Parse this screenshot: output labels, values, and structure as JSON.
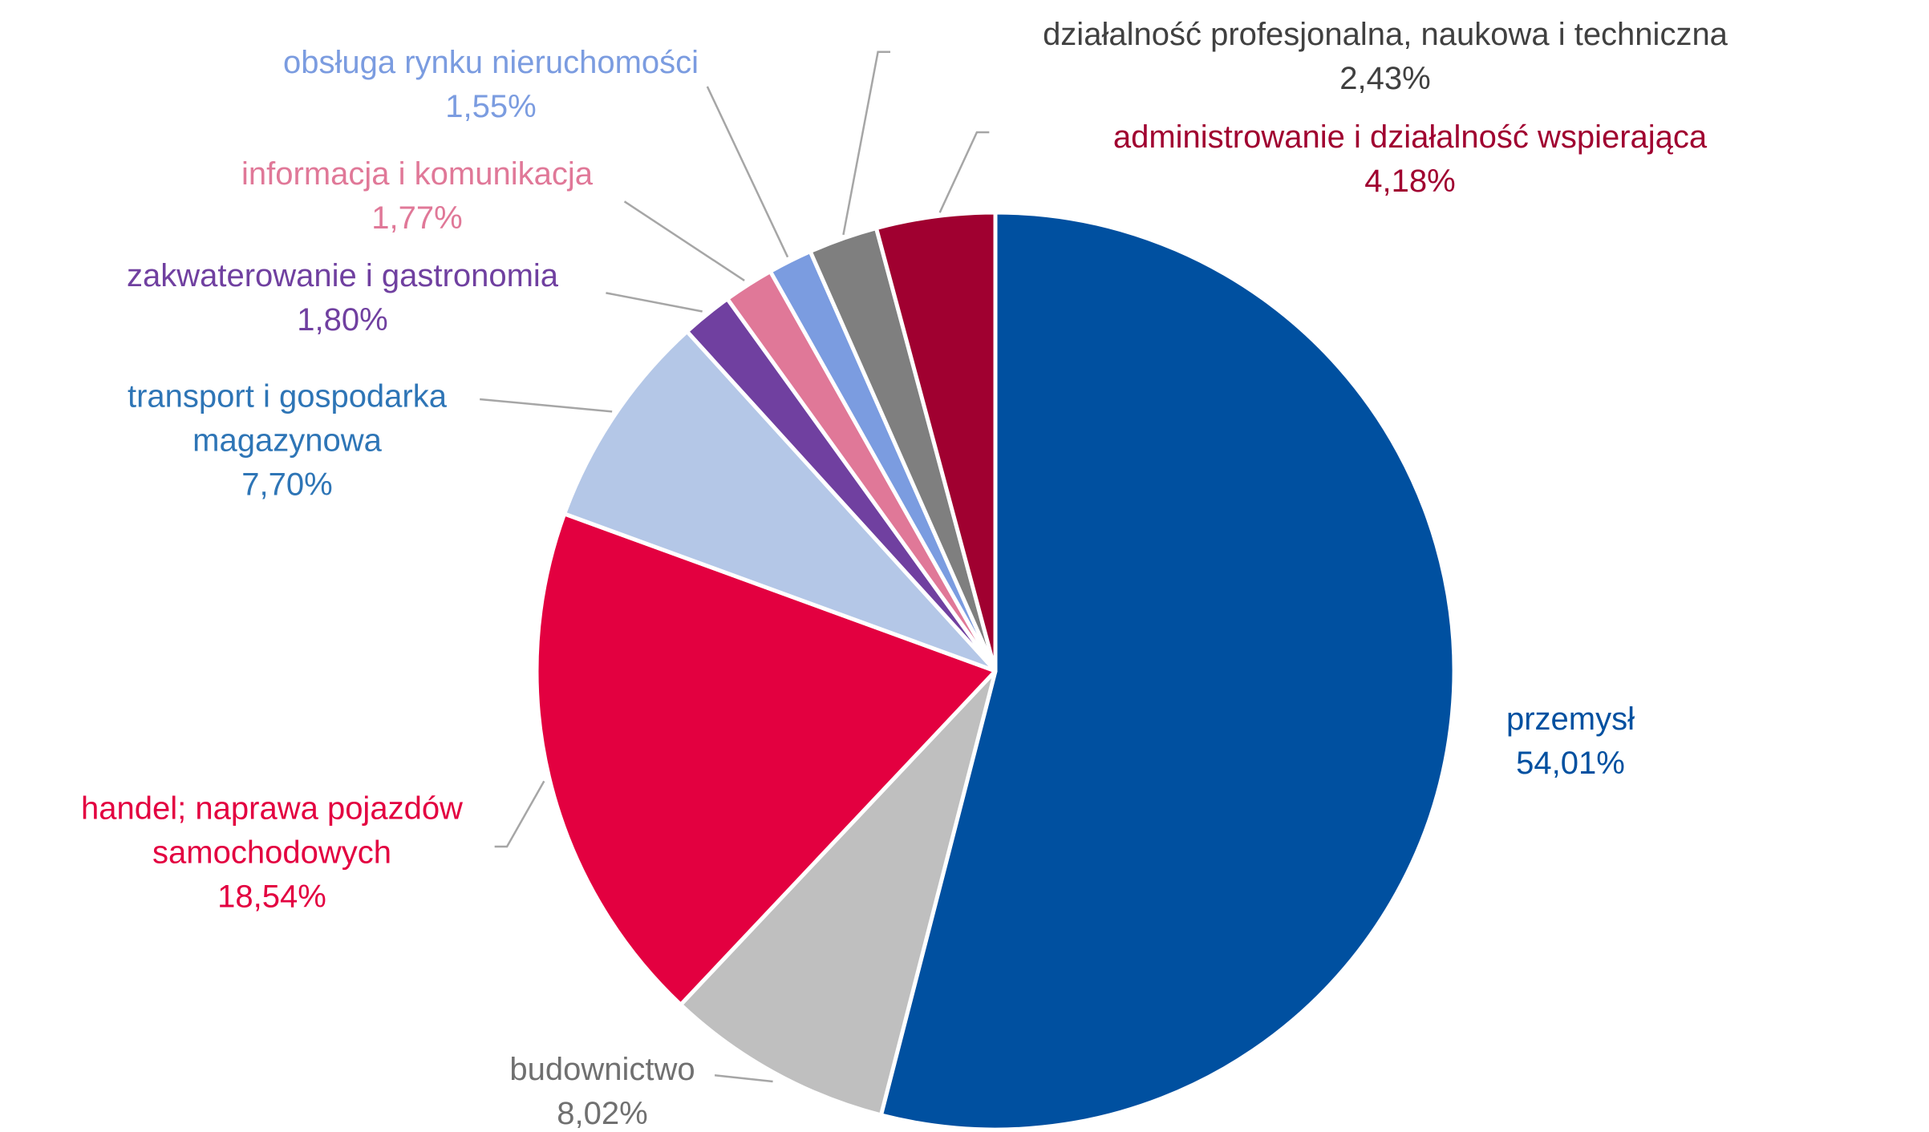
{
  "chart_data": {
    "type": "pie",
    "categories": [
      "przemysł",
      "budownictwo",
      "handel; naprawa pojazdów samochodowych",
      "transport i gospodarka magazynowa",
      "zakwaterowanie i gastronomia",
      "informacja i komunikacja",
      "obsługa rynku nieruchomości",
      "działalność profesjonalna, naukowa i techniczna",
      "administrowanie i działalność wspierająca"
    ],
    "values": [
      54.01,
      8.02,
      18.54,
      7.7,
      1.8,
      1.77,
      1.55,
      2.43,
      4.18
    ],
    "value_labels": [
      "54,01%",
      "8,02%",
      "18,54%",
      "7,70%",
      "1,80%",
      "1,77%",
      "1,55%",
      "2,43%",
      "4,18%"
    ],
    "colors": [
      "#0050a0",
      "#bfbfbf",
      "#e30040",
      "#b4c7e7",
      "#7040a0",
      "#e07898",
      "#7b9ce0",
      "#7f7f7f",
      "#a00030"
    ],
    "label_colors": [
      "#0050a0",
      "#707070",
      "#e30040",
      "#2e75b6",
      "#7040a0",
      "#e07898",
      "#7b9ce0",
      "#404040",
      "#a00030"
    ]
  }
}
